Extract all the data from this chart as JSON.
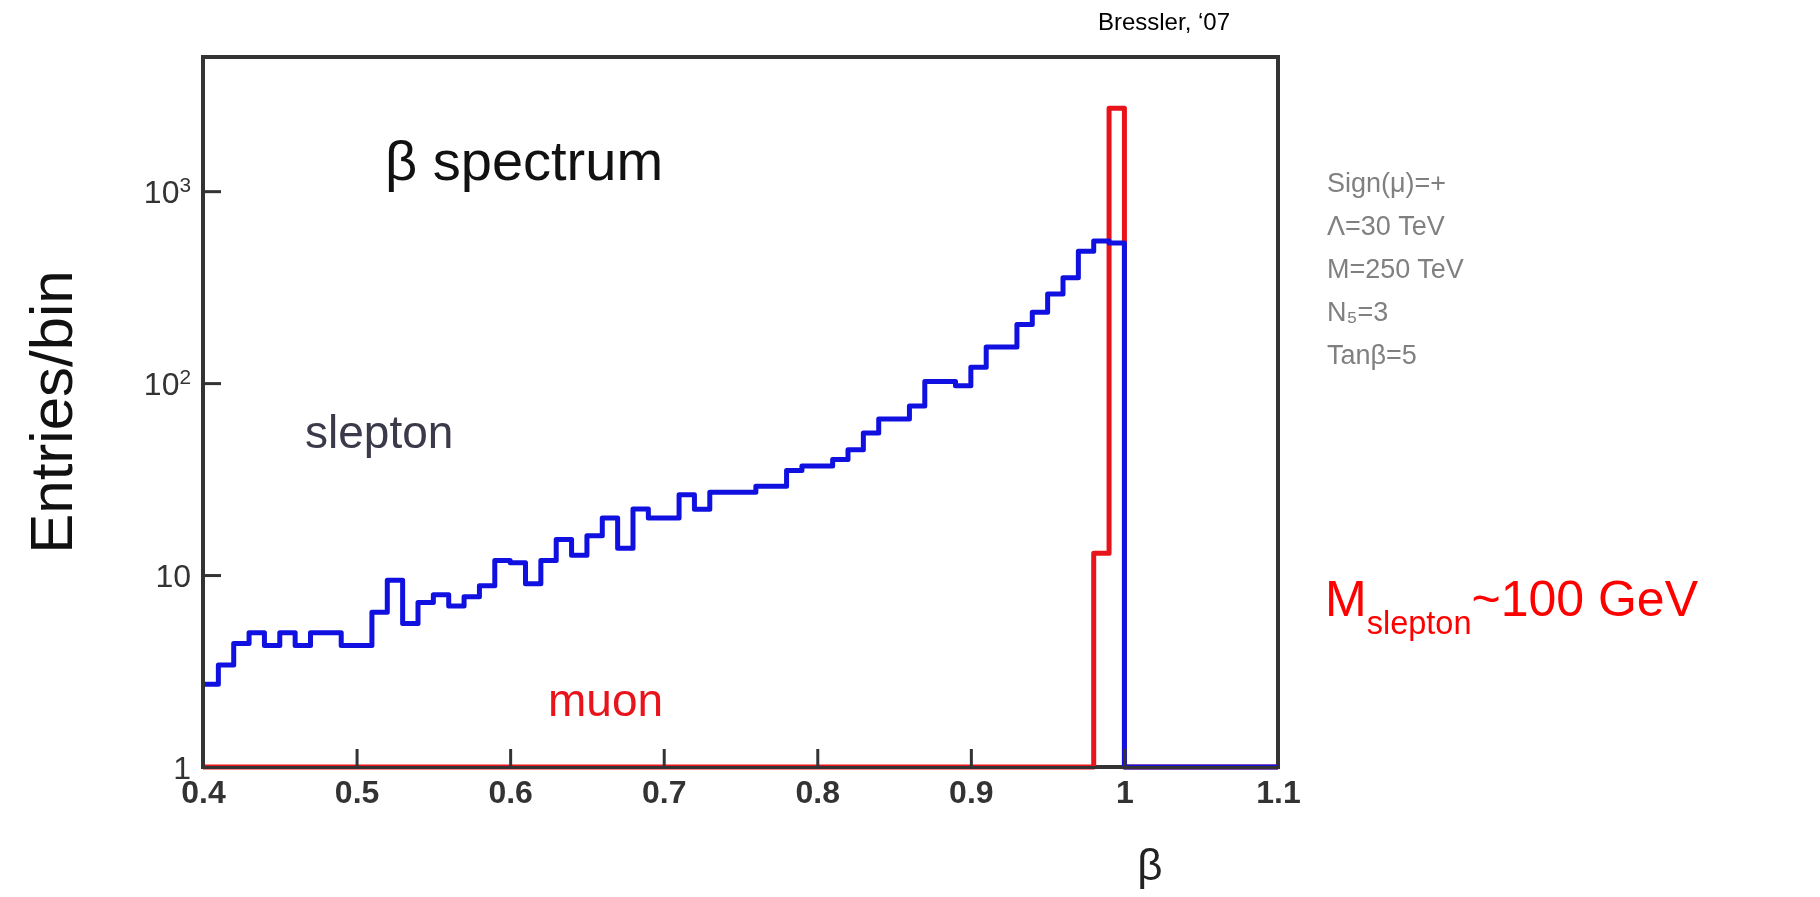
{
  "chart_data": {
    "type": "histogram",
    "title": "β spectrum",
    "xlabel": "β",
    "ylabel": "Entries/bin",
    "bins": [
      0.4,
      0.41,
      0.42,
      0.43,
      0.44,
      0.45,
      0.46,
      0.47,
      0.48,
      0.49,
      0.5,
      0.51,
      0.52,
      0.53,
      0.54,
      0.55,
      0.56,
      0.57,
      0.58,
      0.59,
      0.6,
      0.61,
      0.62,
      0.63,
      0.64,
      0.65,
      0.66,
      0.67,
      0.68,
      0.69,
      0.7,
      0.71,
      0.72,
      0.73,
      0.74,
      0.75,
      0.76,
      0.77,
      0.78,
      0.79,
      0.8,
      0.81,
      0.82,
      0.83,
      0.84,
      0.85,
      0.86,
      0.87,
      0.88,
      0.89,
      0.9,
      0.91,
      0.92,
      0.93,
      0.94,
      0.95,
      0.96,
      0.97,
      0.98,
      0.99,
      1.0,
      1.01,
      1.02,
      1.03,
      1.04,
      1.05,
      1.06,
      1.07,
      1.08,
      1.09,
      1.1
    ],
    "series": [
      {
        "name": "slepton",
        "color": "#1010e0",
        "values": [
          2.7,
          3.4,
          4.4,
          5,
          4.3,
          5,
          4.3,
          5,
          5,
          4.3,
          4.3,
          6.4,
          9.4,
          5.6,
          7.2,
          7.9,
          6.9,
          7.7,
          8.8,
          11.9,
          11.6,
          9,
          11.9,
          15.3,
          12.7,
          16,
          19.8,
          13.8,
          22.1,
          19.8,
          19.8,
          26.2,
          22,
          27,
          27,
          27,
          29,
          29,
          35,
          37,
          37,
          40,
          45,
          55,
          65,
          65,
          76,
          102,
          102,
          97,
          121,
          154,
          154,
          202,
          234,
          291,
          354,
          487,
          550,
          537,
          1,
          1,
          1,
          1,
          1,
          1,
          1,
          1,
          1,
          1
        ]
      },
      {
        "name": "muon",
        "color": "#e8141c",
        "values": [
          1,
          1,
          1,
          1,
          1,
          1,
          1,
          1,
          1,
          1,
          1,
          1,
          1,
          1,
          1,
          1,
          1,
          1,
          1,
          1,
          1,
          1,
          1,
          1,
          1,
          1,
          1,
          1,
          1,
          1,
          1,
          1,
          1,
          1,
          1,
          1,
          1,
          1,
          1,
          1,
          1,
          1,
          1,
          1,
          1,
          1,
          1,
          1,
          1,
          1,
          1,
          1,
          1,
          1,
          1,
          1,
          1,
          1,
          13,
          2700,
          1,
          1,
          1,
          1,
          1,
          1,
          1,
          1,
          1,
          1
        ]
      }
    ],
    "log": "y",
    "xlim": [
      0.4,
      1.1
    ],
    "ylim": [
      1,
      5000
    ],
    "xticks": [
      0.4,
      0.5,
      0.6,
      0.7,
      0.8,
      0.9,
      1,
      1.1
    ],
    "yticks": [
      1,
      10,
      {
        "value": 100,
        "label": "10$^{2}$"
      },
      {
        "value": 1000,
        "label": "10$^{3}$"
      }
    ],
    "annotations": [
      "Bressler, ‘07",
      "Sign(μ)=+",
      "Λ=30 TeV",
      "M=250 TeV",
      "N₅=3",
      "Tanβ=5",
      "M$_{slepton}$~100 GeV"
    ]
  }
}
